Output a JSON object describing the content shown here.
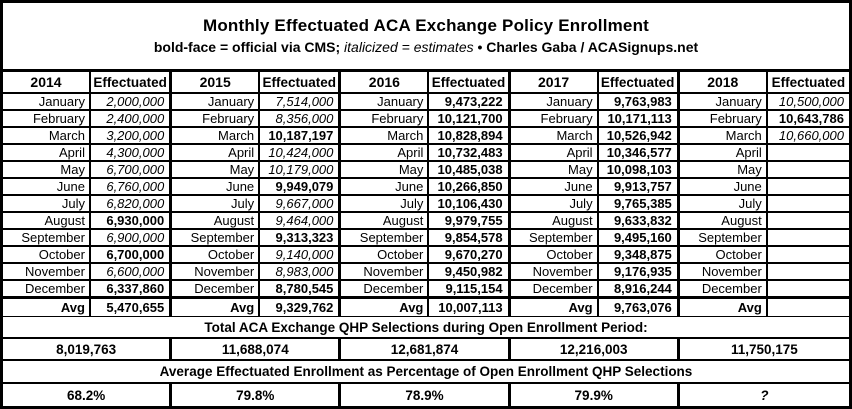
{
  "header": {
    "title": "Monthly Effectuated ACA Exchange Policy Enrollment",
    "subtitle_bold1": "bold-face = official via CMS; ",
    "subtitle_italic": "italicized = estimates",
    "subtitle_bold2": "  •  Charles Gaba / ACASignups.net"
  },
  "table": {
    "effectuated_label": "Effectuated",
    "avg_label": "Avg",
    "month_labels": [
      "January",
      "February",
      "March",
      "April",
      "May",
      "June",
      "July",
      "August",
      "September",
      "October",
      "November",
      "December"
    ],
    "years": [
      {
        "year": "2014",
        "values": [
          {
            "t": "2,000,000",
            "s": "e"
          },
          {
            "t": "2,400,000",
            "s": "e"
          },
          {
            "t": "3,200,000",
            "s": "e"
          },
          {
            "t": "4,300,000",
            "s": "e"
          },
          {
            "t": "6,700,000",
            "s": "e"
          },
          {
            "t": "6,760,000",
            "s": "e"
          },
          {
            "t": "6,820,000",
            "s": "e"
          },
          {
            "t": "6,930,000",
            "s": "o"
          },
          {
            "t": "6,900,000",
            "s": "e"
          },
          {
            "t": "6,700,000",
            "s": "o"
          },
          {
            "t": "6,600,000",
            "s": "e"
          },
          {
            "t": "6,337,860",
            "s": "o"
          }
        ],
        "avg": {
          "t": "5,470,655",
          "s": "o"
        }
      },
      {
        "year": "2015",
        "values": [
          {
            "t": "7,514,000",
            "s": "e"
          },
          {
            "t": "8,356,000",
            "s": "e"
          },
          {
            "t": "10,187,197",
            "s": "o"
          },
          {
            "t": "10,424,000",
            "s": "e"
          },
          {
            "t": "10,179,000",
            "s": "e"
          },
          {
            "t": "9,949,079",
            "s": "o"
          },
          {
            "t": "9,667,000",
            "s": "e"
          },
          {
            "t": "9,464,000",
            "s": "e"
          },
          {
            "t": "9,313,323",
            "s": "o"
          },
          {
            "t": "9,140,000",
            "s": "e"
          },
          {
            "t": "8,983,000",
            "s": "e"
          },
          {
            "t": "8,780,545",
            "s": "o"
          }
        ],
        "avg": {
          "t": "9,329,762",
          "s": "o"
        }
      },
      {
        "year": "2016",
        "values": [
          {
            "t": "9,473,222",
            "s": "o"
          },
          {
            "t": "10,121,700",
            "s": "o"
          },
          {
            "t": "10,828,894",
            "s": "o"
          },
          {
            "t": "10,732,483",
            "s": "o"
          },
          {
            "t": "10,485,038",
            "s": "o"
          },
          {
            "t": "10,266,850",
            "s": "o"
          },
          {
            "t": "10,106,430",
            "s": "o"
          },
          {
            "t": "9,979,755",
            "s": "o"
          },
          {
            "t": "9,854,578",
            "s": "o"
          },
          {
            "t": "9,670,270",
            "s": "o"
          },
          {
            "t": "9,450,982",
            "s": "o"
          },
          {
            "t": "9,115,154",
            "s": "o"
          }
        ],
        "avg": {
          "t": "10,007,113",
          "s": "o"
        }
      },
      {
        "year": "2017",
        "values": [
          {
            "t": "9,763,983",
            "s": "o"
          },
          {
            "t": "10,171,113",
            "s": "o"
          },
          {
            "t": "10,526,942",
            "s": "o"
          },
          {
            "t": "10,346,577",
            "s": "o"
          },
          {
            "t": "10,098,103",
            "s": "o"
          },
          {
            "t": "9,913,757",
            "s": "o"
          },
          {
            "t": "9,765,385",
            "s": "o"
          },
          {
            "t": "9,633,832",
            "s": "o"
          },
          {
            "t": "9,495,160",
            "s": "o"
          },
          {
            "t": "9,348,875",
            "s": "o"
          },
          {
            "t": "9,176,935",
            "s": "o"
          },
          {
            "t": "8,916,244",
            "s": "o"
          }
        ],
        "avg": {
          "t": "9,763,076",
          "s": "o"
        }
      },
      {
        "year": "2018",
        "values": [
          {
            "t": "10,500,000",
            "s": "e"
          },
          {
            "t": "10,643,786",
            "s": "o"
          },
          {
            "t": "10,660,000",
            "s": "e"
          },
          null,
          null,
          null,
          null,
          null,
          null,
          null,
          null,
          null
        ],
        "avg": null
      }
    ]
  },
  "totals_section": {
    "heading": "Total ACA Exchange QHP Selections during Open Enrollment Period:",
    "values": [
      "8,019,763",
      "11,688,074",
      "12,681,874",
      "12,216,003",
      "11,750,175"
    ]
  },
  "percent_section": {
    "heading": "Average Effectuated Enrollment as Percentage of Open Enrollment QHP Selections",
    "values": [
      {
        "t": "68.2%",
        "s": "o"
      },
      {
        "t": "79.8%",
        "s": "o"
      },
      {
        "t": "78.9%",
        "s": "o"
      },
      {
        "t": "79.9%",
        "s": "o"
      },
      {
        "t": "?",
        "s": "e"
      }
    ]
  },
  "colors": {
    "border": "#000000",
    "background": "#ffffff",
    "text": "#000000"
  },
  "chart_data": {
    "type": "table",
    "title": "Monthly Effectuated ACA Exchange Policy Enrollment",
    "subtitle": "bold-face = official via CMS; italicized = estimates • Charles Gaba / ACASignups.net",
    "categories": [
      "January",
      "February",
      "March",
      "April",
      "May",
      "June",
      "July",
      "August",
      "September",
      "October",
      "November",
      "December"
    ],
    "series": [
      {
        "name": "2014",
        "values": [
          2000000,
          2400000,
          3200000,
          4300000,
          6700000,
          6760000,
          6820000,
          6930000,
          6900000,
          6700000,
          6600000,
          6337860
        ],
        "avg": 5470655
      },
      {
        "name": "2015",
        "values": [
          7514000,
          8356000,
          10187197,
          10424000,
          10179000,
          9949079,
          9667000,
          9464000,
          9313323,
          9140000,
          8983000,
          8780545
        ],
        "avg": 9329762
      },
      {
        "name": "2016",
        "values": [
          9473222,
          10121700,
          10828894,
          10732483,
          10485038,
          10266850,
          10106430,
          9979755,
          9854578,
          9670270,
          9450982,
          9115154
        ],
        "avg": 10007113
      },
      {
        "name": "2017",
        "values": [
          9763983,
          10171113,
          10526942,
          10346577,
          10098103,
          9913757,
          9765385,
          9633832,
          9495160,
          9348875,
          9176935,
          8916244
        ],
        "avg": 9763076
      },
      {
        "name": "2018",
        "values": [
          10500000,
          10643786,
          10660000,
          null,
          null,
          null,
          null,
          null,
          null,
          null,
          null,
          null
        ],
        "avg": null
      }
    ],
    "totals_open_enrollment_qhp_selections": [
      8019763,
      11688074,
      12681874,
      12216003,
      11750175
    ],
    "avg_effectuated_pct_of_qhp_selections": [
      "68.2%",
      "79.8%",
      "78.9%",
      "79.9%",
      "?"
    ]
  }
}
